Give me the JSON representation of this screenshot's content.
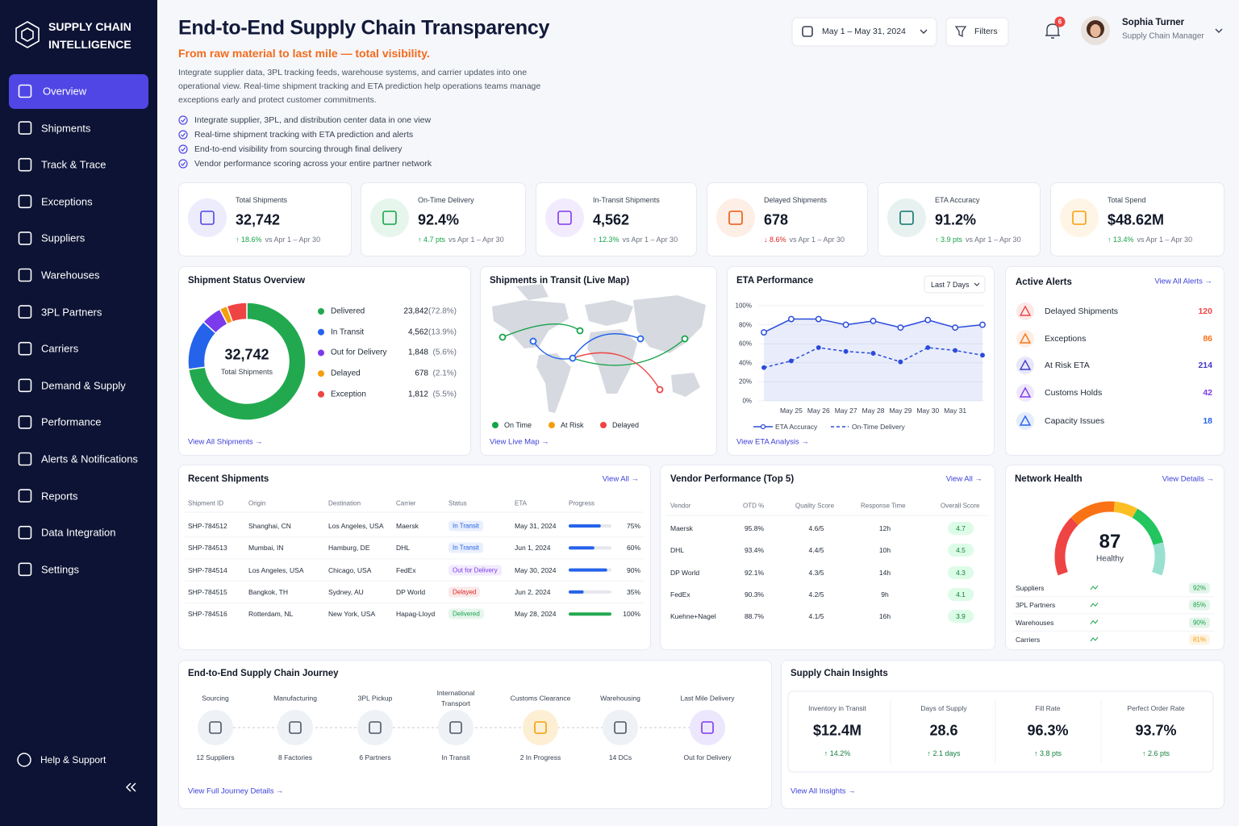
{
  "sidebar": {
    "brand": [
      "SUPPLY CHAIN",
      "INTELLIGENCE"
    ],
    "nav": [
      "Overview",
      "Shipments",
      "Track & Trace",
      "Exceptions",
      "Suppliers",
      "Warehouses",
      "3PL Partners",
      "Carriers",
      "Demand & Supply",
      "Performance",
      "Alerts & Notifications",
      "Reports",
      "Data Integration",
      "Settings"
    ],
    "help": "Help & Support"
  },
  "header": {
    "title": "End-to-End Supply Chain Transparency",
    "subtitle": "From raw material to last mile — total visibility.",
    "description": "Integrate supplier data, 3PL tracking feeds, warehouse systems, and carrier updates into one operational view. Real-time shipment tracking and ETA prediction help operations teams manage exceptions early and protect customer commitments.",
    "bullets": [
      "Integrate supplier, 3PL, and distribution center data in one view",
      "Real-time shipment tracking with ETA prediction and alerts",
      "End-to-end visibility from sourcing through final delivery",
      "Vendor performance scoring across your entire partner network"
    ],
    "date_range": "May 1 – May 31, 2024",
    "filters": "Filters",
    "notifications": 6,
    "user": {
      "name": "Sophia Turner",
      "role": "Supply Chain Manager"
    }
  },
  "kpis": [
    {
      "label": "Total Shipments",
      "value": "32,742",
      "change": "↑ 18.6%",
      "comparison": "vs Apr 1 – Apr 30",
      "color": "#4f46e5",
      "change_color": "#16a34a"
    },
    {
      "label": "On-Time Delivery",
      "value": "92.4%",
      "change": "↑ 4.7 pts",
      "comparison": "vs Apr 1 – Apr 30",
      "color": "#16a34a",
      "change_color": "#16a34a"
    },
    {
      "label": "In-Transit Shipments",
      "value": "4,562",
      "change": "↑ 12.3%",
      "comparison": "vs Apr 1 – Apr 30",
      "color": "#7c3aed",
      "change_color": "#16a34a"
    },
    {
      "label": "Delayed Shipments",
      "value": "678",
      "change": "↓ 8.6%",
      "comparison": "vs Apr 1 – Apr 30",
      "color": "#ea580c",
      "change_color": "#dc2626"
    },
    {
      "label": "ETA Accuracy",
      "value": "91.2%",
      "change": "↑ 3.9 pts",
      "comparison": "vs Apr 1 – Apr 30",
      "color": "#0f766e",
      "change_color": "#16a34a"
    },
    {
      "label": "Total Spend",
      "value": "$48.62M",
      "change": "↑ 13.4%",
      "comparison": "vs Apr 1 – Apr 30",
      "color": "#f59e0b",
      "change_color": "#16a34a"
    }
  ],
  "chart_data": [
    {
      "type": "donut",
      "title": "Shipment Status Overview",
      "total": "32,742",
      "total_label": "Total Shipments",
      "categories": [
        "Delivered",
        "In Transit",
        "Out for Delivery",
        "Delayed",
        "Exception"
      ],
      "values": [
        23842,
        4562,
        1848,
        678,
        1812
      ],
      "value_labels": [
        "23,842",
        "4,562",
        "1,848",
        "678",
        "1,812"
      ],
      "percentages": [
        72.8,
        13.9,
        5.6,
        2.1,
        5.5
      ],
      "percentage_labels": [
        "(72.8%)",
        "(13.9%)",
        "(5.6%)",
        "(2.1%)",
        "(5.5%)"
      ],
      "colors": [
        "#22a94f",
        "#2563eb",
        "#7c3aed",
        "#f59e0b",
        "#ef4444"
      ],
      "link": "View All Shipments →"
    },
    {
      "type": "line",
      "title": "ETA Performance",
      "period": "Last 7 Days",
      "categories": [
        null,
        "May 25",
        "May 26",
        "May 27",
        "May 28",
        "May 29",
        "May 30",
        "May 31",
        null
      ],
      "series": [
        {
          "name": "ETA Accuracy",
          "color": "#2b4bdc",
          "values": [
            72,
            86,
            86,
            80,
            84,
            77,
            85,
            77,
            80
          ]
        },
        {
          "name": "On-Time Delivery",
          "color": "#2b4bdc",
          "dashed": true,
          "values": [
            35,
            42,
            56,
            52,
            50,
            41,
            56,
            53,
            48
          ]
        }
      ],
      "ylim": [
        0,
        100
      ],
      "yticks": [
        {
          "value": 0,
          "label": "0%"
        },
        {
          "value": 20,
          "label": "20%"
        },
        {
          "value": 40,
          "label": "40%"
        },
        {
          "value": 60,
          "label": "60%"
        },
        {
          "value": 80,
          "label": "80%"
        },
        {
          "value": 100,
          "label": "100%"
        }
      ],
      "grid": true,
      "link": "View ETA Analysis →"
    }
  ],
  "map": {
    "title": "Shipments in Transit (Live Map)",
    "legend": [
      {
        "name": "On Time",
        "color": "#16a34a"
      },
      {
        "name": "At Risk",
        "color": "#f59e0b"
      },
      {
        "name": "Delayed",
        "color": "#ef4444"
      }
    ],
    "link": "View Live Map →"
  },
  "alerts": {
    "title": "Active Alerts",
    "link": "View All Alerts →",
    "items": [
      {
        "name": "Delayed Shipments",
        "count": 120,
        "color": "#ef4444"
      },
      {
        "name": "Exceptions",
        "count": 86,
        "color": "#f97316"
      },
      {
        "name": "At Risk ETA",
        "count": 214,
        "color": "#4338ca"
      },
      {
        "name": "Customs Holds",
        "count": 42,
        "color": "#7c3aed"
      },
      {
        "name": "Capacity Issues",
        "count": 18,
        "color": "#2563eb"
      }
    ]
  },
  "recent_shipments": {
    "title": "Recent Shipments",
    "link": "View All →",
    "columns": [
      "Shipment ID",
      "Origin",
      "Destination",
      "Carrier",
      "Status",
      "ETA",
      "Progress"
    ],
    "rows": [
      {
        "id": "SHP-784512",
        "origin": "Shanghai, CN",
        "destination": "Los Angeles, USA",
        "carrier": "Maersk",
        "status": "In Transit",
        "status_color": "#2563eb",
        "eta": "May 31, 2024",
        "progress": 75,
        "progress_label": "75%",
        "bar_color": "#2563eb"
      },
      {
        "id": "SHP-784513",
        "origin": "Mumbai, IN",
        "destination": "Hamburg, DE",
        "carrier": "DHL",
        "status": "In Transit",
        "status_color": "#2563eb",
        "eta": "Jun 1, 2024",
        "progress": 60,
        "progress_label": "60%",
        "bar_color": "#2563eb"
      },
      {
        "id": "SHP-784514",
        "origin": "Los Angeles, USA",
        "destination": "Chicago, USA",
        "carrier": "FedEx",
        "status": "Out for Delivery",
        "status_color": "#7c3aed",
        "eta": "May 30, 2024",
        "progress": 90,
        "progress_label": "90%",
        "bar_color": "#2563eb"
      },
      {
        "id": "SHP-784515",
        "origin": "Bangkok, TH",
        "destination": "Sydney, AU",
        "carrier": "DP World",
        "status": "Delayed",
        "status_color": "#dc2626",
        "eta": "Jun 2, 2024",
        "progress": 35,
        "progress_label": "35%",
        "bar_color": "#2563eb"
      },
      {
        "id": "SHP-784516",
        "origin": "Rotterdam, NL",
        "destination": "New York, USA",
        "carrier": "Hapag-Lloyd",
        "status": "Delivered",
        "status_color": "#16a34a",
        "eta": "May 28, 2024",
        "progress": 100,
        "progress_label": "100%",
        "bar_color": "#22a94f"
      }
    ]
  },
  "vendor_performance": {
    "title": "Vendor Performance (Top 5)",
    "link": "View All →",
    "columns": [
      "Vendor",
      "OTD %",
      "Quality Score",
      "Response Time",
      "Overall Score"
    ],
    "rows": [
      [
        "Maersk",
        "95.8%",
        "4.6/5",
        "12h",
        "4.7"
      ],
      [
        "DHL",
        "93.4%",
        "4.4/5",
        "10h",
        "4.5"
      ],
      [
        "DP World",
        "92.1%",
        "4.3/5",
        "14h",
        "4.3"
      ],
      [
        "FedEx",
        "90.3%",
        "4.2/5",
        "9h",
        "4.1"
      ],
      [
        "Kuehne+Nagel",
        "88.7%",
        "4.1/5",
        "16h",
        "3.9"
      ]
    ]
  },
  "network_health": {
    "title": "Network Health",
    "link": "View Details →",
    "score": 87,
    "status": "Healthy",
    "items": [
      {
        "name": "Suppliers",
        "value": "92%",
        "color": "#16a34a"
      },
      {
        "name": "3PL Partners",
        "value": "85%",
        "color": "#16a34a"
      },
      {
        "name": "Warehouses",
        "value": "90%",
        "color": "#16a34a"
      },
      {
        "name": "Carriers",
        "value": "81%",
        "color": "#f59e0b"
      }
    ]
  },
  "journey": {
    "title": "End-to-End Supply Chain Journey",
    "steps": [
      {
        "label": "Sourcing",
        "detail": "12 Suppliers"
      },
      {
        "label": "Manufacturing",
        "detail": "8 Factories"
      },
      {
        "label": "3PL Pickup",
        "detail": "6 Partners"
      },
      {
        "label": "International Transport",
        "detail": "In Transit"
      },
      {
        "label": "Customs Clearance",
        "detail": "2 In Progress"
      },
      {
        "label": "Warehousing",
        "detail": "14 DCs"
      },
      {
        "label": "Last Mile Delivery",
        "detail": "Out for Delivery"
      }
    ],
    "link": "View Full Journey Details →"
  },
  "insights": {
    "title": "Supply Chain Insights",
    "items": [
      {
        "label": "Inventory in Transit",
        "value": "$12.4M",
        "change": "↑ 14.2%"
      },
      {
        "label": "Days of Supply",
        "value": "28.6",
        "change": "↑ 2.1 days"
      },
      {
        "label": "Fill Rate",
        "value": "96.3%",
        "change": "↑ 3.8 pts"
      },
      {
        "label": "Perfect Order Rate",
        "value": "93.7%",
        "change": "↑ 2.6 pts"
      }
    ],
    "link": "View All Insights →"
  }
}
